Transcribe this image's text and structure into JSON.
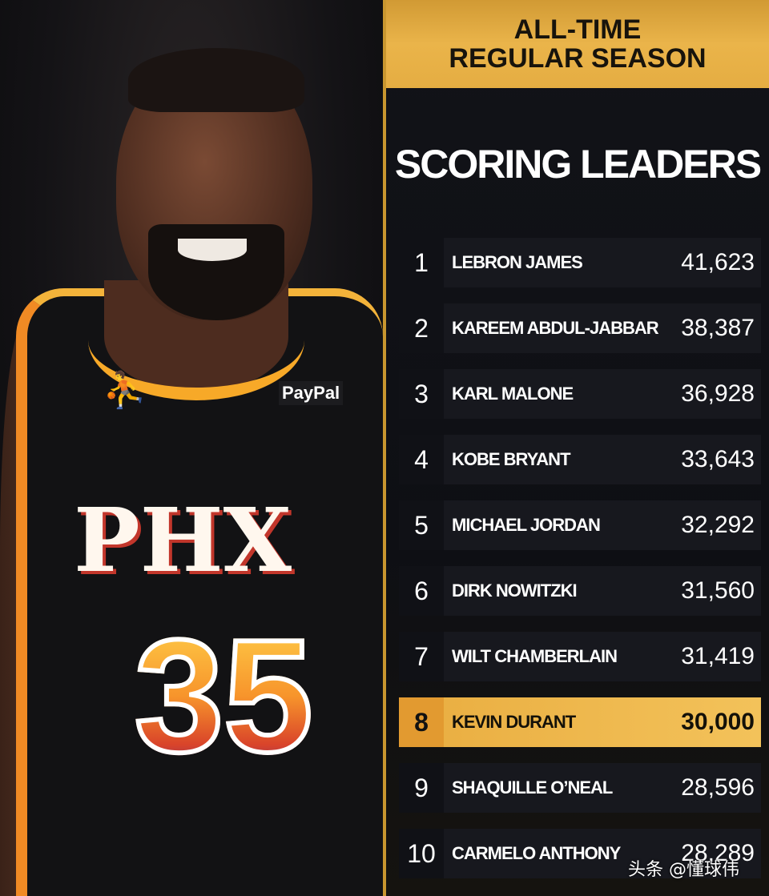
{
  "photo": {
    "jersey_sponsor": "PayPal",
    "jersey_city": "PHX",
    "jersey_number": "35",
    "colors": {
      "jersey": "#121214",
      "trim_orange": "#f08a24",
      "trim_gold": "#f3b33a"
    }
  },
  "header": {
    "line1": "ALL-TIME",
    "line2": "REGULAR SEASON",
    "title": "SCORING LEADERS"
  },
  "leaders": [
    {
      "rank": "1",
      "name": "LEBRON JAMES",
      "points": "41,623"
    },
    {
      "rank": "2",
      "name": "KAREEM ABDUL-JABBAR",
      "points": "38,387"
    },
    {
      "rank": "3",
      "name": "KARL MALONE",
      "points": "36,928"
    },
    {
      "rank": "4",
      "name": "KOBE BRYANT",
      "points": "33,643"
    },
    {
      "rank": "5",
      "name": "MICHAEL JORDAN",
      "points": "32,292"
    },
    {
      "rank": "6",
      "name": "DIRK NOWITZKI",
      "points": "31,560"
    },
    {
      "rank": "7",
      "name": "WILT CHAMBERLAIN",
      "points": "31,419"
    },
    {
      "rank": "8",
      "name": "KEVIN DURANT",
      "points": "30,000",
      "highlighted": true
    },
    {
      "rank": "9",
      "name": "SHAQUILLE O’NEAL",
      "points": "28,596"
    },
    {
      "rank": "10",
      "name": "CARMELO ANTHONY",
      "points": "28,289"
    }
  ],
  "colors": {
    "gold": "#e9ad40",
    "panel": "#121318",
    "row": "#17181e"
  },
  "watermark": "头条 @懂球伟"
}
